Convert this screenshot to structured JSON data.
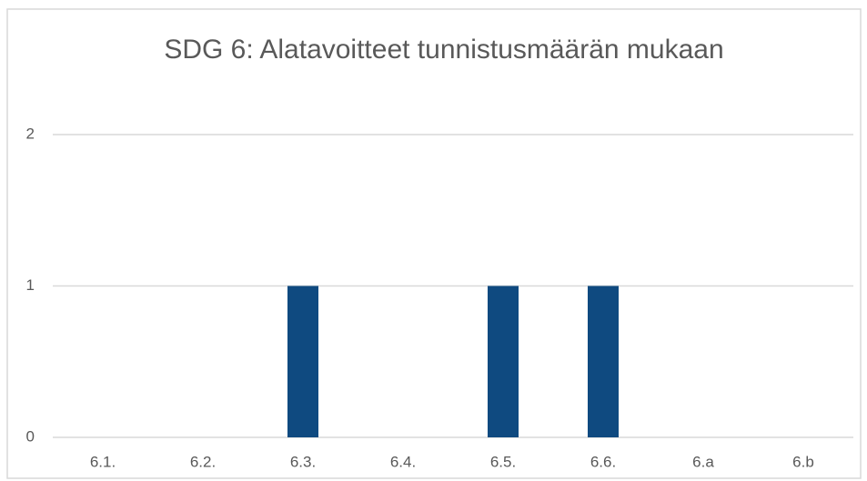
{
  "chart_data": {
    "type": "bar",
    "title": "SDG 6: Alatavoitteet tunnistusmäärän mukaan",
    "categories": [
      "6.1.",
      "6.2.",
      "6.3.",
      "6.4.",
      "6.5.",
      "6.6.",
      "6.a",
      "6.b"
    ],
    "values": [
      0,
      0,
      1,
      0,
      1,
      1,
      0,
      0
    ],
    "color": "#0f4a80",
    "ylim": [
      0,
      2
    ],
    "yticks": [
      0,
      1,
      2
    ],
    "grid": true
  }
}
